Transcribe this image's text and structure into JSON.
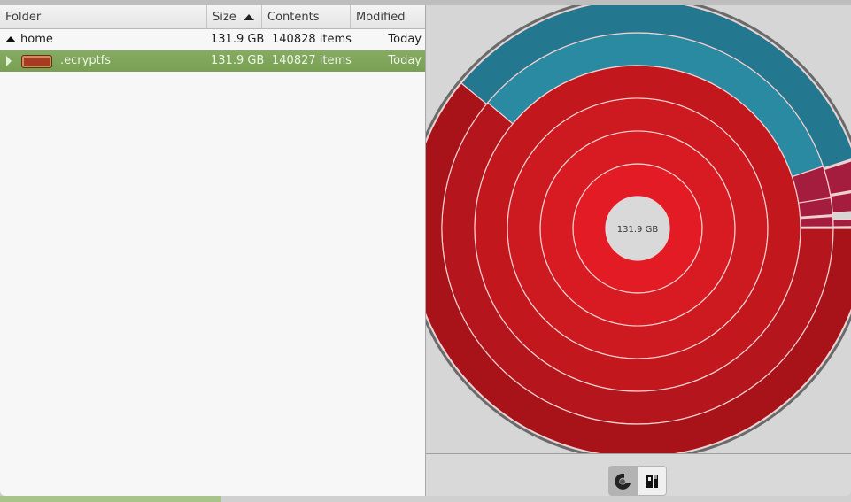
{
  "columns": [
    {
      "label": "Folder"
    },
    {
      "label": "Size",
      "sorted": "ascending"
    },
    {
      "label": "Contents"
    },
    {
      "label": "Modified"
    }
  ],
  "rows": [
    {
      "name": "home",
      "size": "131.9 GB",
      "contents": "140828 items",
      "modified": "Today",
      "expanded": true,
      "selected": false
    },
    {
      "name": ".ecryptfs",
      "size": "131.9 GB",
      "contents": "140827 items",
      "modified": "Today",
      "expanded": false,
      "selected": true
    }
  ],
  "chart": {
    "center_label": "131.9 GB",
    "colors": {
      "center": "#d9d9d9",
      "red": [
        "#e31b24",
        "#d81a22",
        "#cd1920",
        "#c3171e",
        "#b5151c",
        "#a8131a"
      ],
      "teal": [
        "#2a8aa2",
        "#237890"
      ],
      "crimson": "#a51d3e",
      "outline": "#6a6a6a"
    },
    "segments": [
      {
        "ring": 1,
        "from": 0,
        "to": 360,
        "color": "red"
      },
      {
        "ring": 2,
        "from": 0,
        "to": 360,
        "color": "red"
      },
      {
        "ring": 3,
        "from": 0,
        "to": 360,
        "color": "red"
      },
      {
        "ring": 4,
        "from": 0,
        "to": 360,
        "color": "red"
      },
      {
        "ring": 5,
        "from": 140,
        "to": 360,
        "color": "red"
      },
      {
        "ring": 5,
        "from": 18.5,
        "to": 140,
        "color": "teal"
      },
      {
        "ring": 5,
        "from": 9,
        "to": 18.5,
        "color": "crimson"
      },
      {
        "ring": 5,
        "from": 4,
        "to": 9,
        "color": "crimson"
      },
      {
        "ring": 5,
        "from": 0.5,
        "to": 3.5,
        "color": "crimson"
      },
      {
        "ring": 6,
        "from": 140.5,
        "to": 360,
        "color": "red"
      },
      {
        "ring": 6,
        "from": 18,
        "to": 140.5,
        "color": "teal"
      },
      {
        "ring": 6,
        "from": 10,
        "to": 17.5,
        "color": "crimson"
      },
      {
        "ring": 6,
        "from": 4.5,
        "to": 9.5,
        "color": "crimson"
      },
      {
        "ring": 6,
        "from": 0.5,
        "to": 2.5,
        "color": "crimson"
      }
    ]
  },
  "toolbar": {
    "buttons": [
      {
        "icon": "rings-chart-icon",
        "active": true
      },
      {
        "icon": "treemap-chart-icon",
        "active": false
      }
    ]
  }
}
